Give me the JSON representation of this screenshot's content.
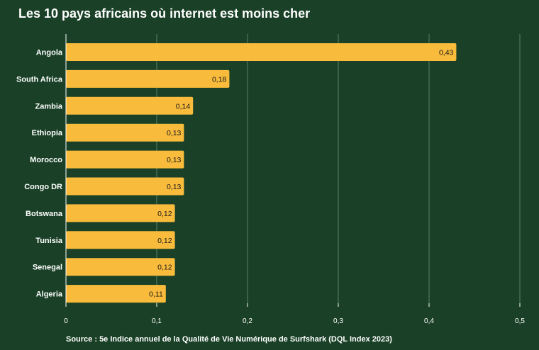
{
  "chart_data": {
    "type": "bar",
    "orientation": "horizontal",
    "title": "Les 10 pays africains où internet est moins cher",
    "source": "Source : 5e Indice annuel de la Qualité de Vie Numérique de Surfshark (DQL Index 2023)",
    "categories": [
      "Angola",
      "South Africa",
      "Zambia",
      "Ethiopia",
      "Morocco",
      "Congo DR",
      "Botswana",
      "Tunisia",
      "Senegal",
      "Algeria"
    ],
    "values": [
      0.43,
      0.18,
      0.14,
      0.13,
      0.13,
      0.13,
      0.12,
      0.12,
      0.12,
      0.11
    ],
    "value_labels": [
      "0,43",
      "0,18",
      "0,14",
      "0,13",
      "0,13",
      "0,13",
      "0,12",
      "0,12",
      "0,12",
      "0,11"
    ],
    "xlim": [
      0,
      0.5
    ],
    "xticks": [
      0,
      0.1,
      0.2,
      0.3,
      0.4,
      0.5
    ],
    "xtick_labels": [
      "0",
      "0,1",
      "0,2",
      "0,3",
      "0,4",
      "0,5"
    ],
    "grid": "vertical",
    "legend": "none",
    "colors": {
      "background": "#1a4127",
      "bar": "#f8bb3c",
      "grid": "#5f7f66",
      "text": "#ffffff",
      "value_text": "#1a1a1a"
    }
  }
}
